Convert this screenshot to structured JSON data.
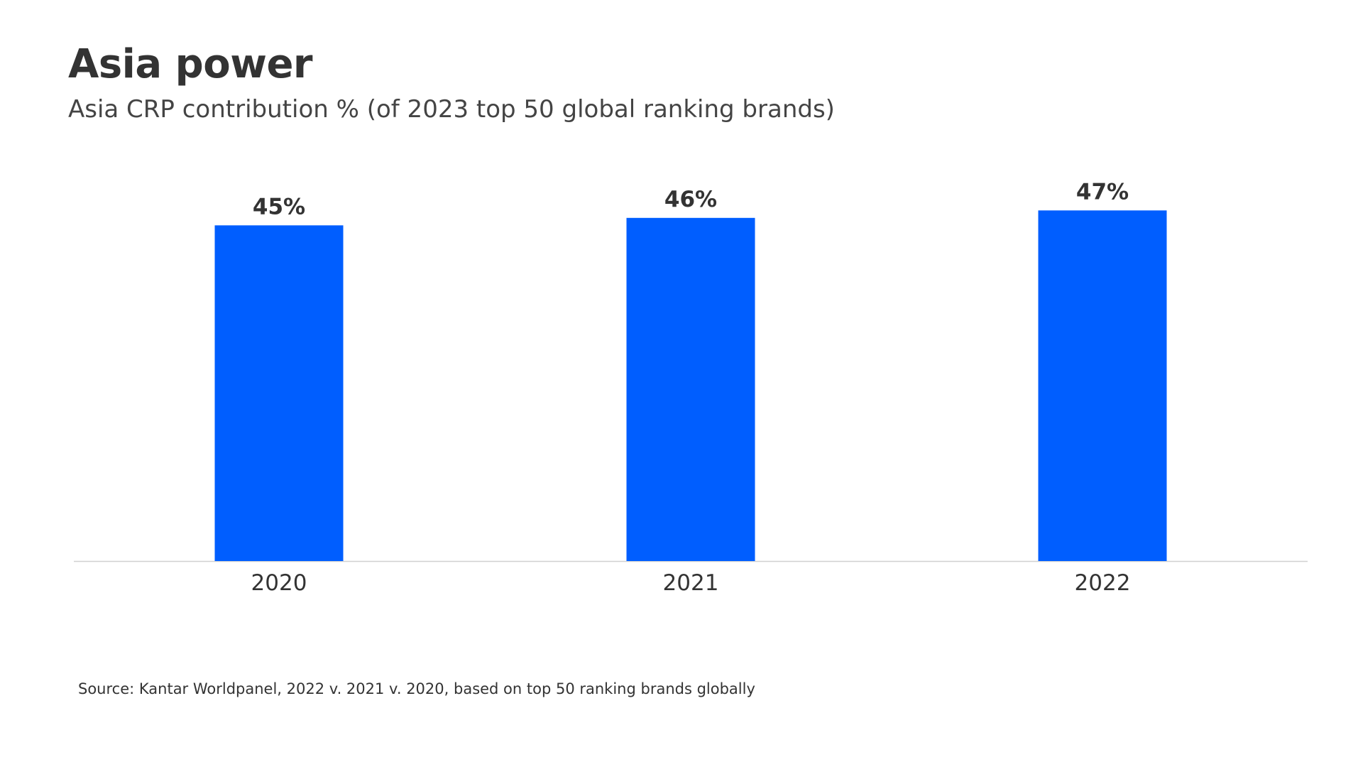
{
  "colors": {
    "bar": "#005eff",
    "axis": "#d0d0d0",
    "text": "#333333"
  },
  "chart_data": {
    "type": "bar",
    "title": "Asia power",
    "subtitle": "Asia CRP contribution % (of 2023 top 50 global ranking brands)",
    "categories": [
      "2020",
      "2021",
      "2022"
    ],
    "values": [
      45,
      46,
      47
    ],
    "data_labels": [
      "45%",
      "46%",
      "47%"
    ],
    "ylim": [
      0,
      47.6
    ],
    "grid": false,
    "legend": "none",
    "source": "Source: Kantar Worldpanel, 2022 v. 2021 v. 2020, based on top 50 ranking brands globally"
  }
}
